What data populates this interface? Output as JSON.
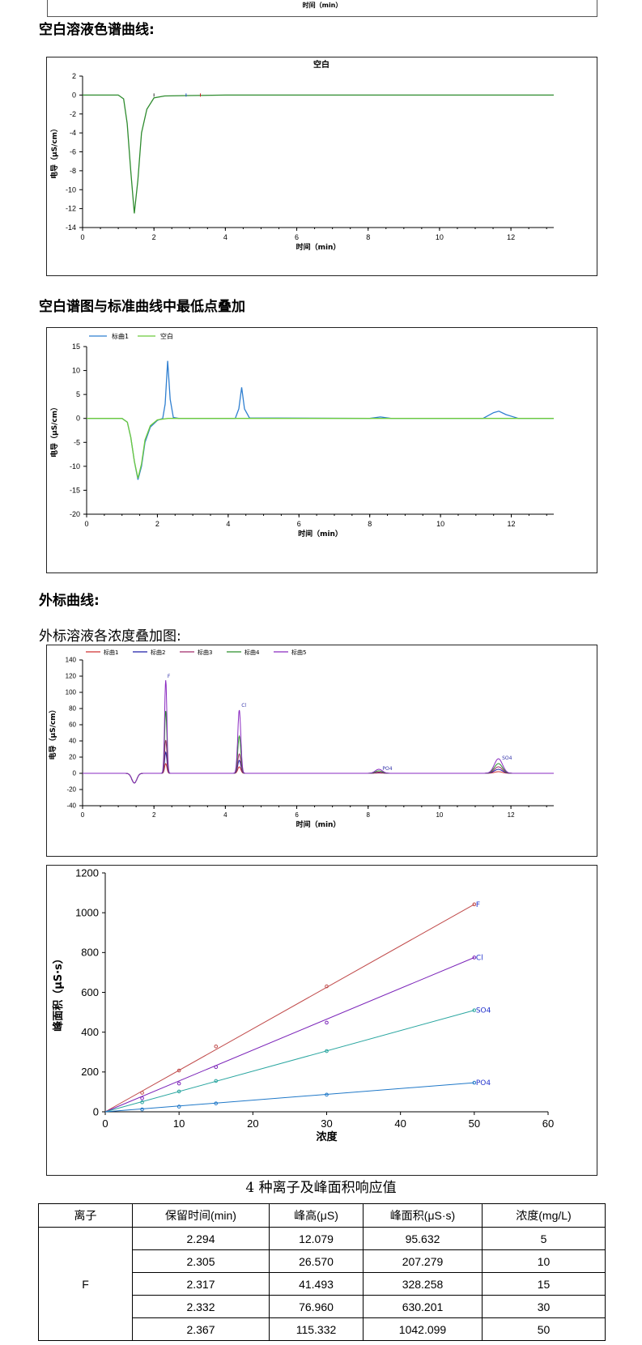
{
  "top_fragment": {
    "xlabel": "时间（min）"
  },
  "sections": {
    "blank_title": "空白溶液色谱曲线:",
    "overlay_title": "空白谱图与标准曲线中最低点叠加",
    "external_title": "外标曲线:",
    "overlay_all_title": "外标溶液各浓度叠加图:"
  },
  "chart_data": [
    {
      "type": "line",
      "title": "空白",
      "xlabel": "时间（min）",
      "ylabel": "电导（μS/cm）",
      "xlim": [
        0,
        13.2
      ],
      "ylim": [
        -14,
        2
      ],
      "xticks": [
        0,
        2,
        4,
        6,
        8,
        10,
        12
      ],
      "yticks": [
        2,
        0,
        -2,
        -4,
        -6,
        -8,
        -10,
        -12,
        -14
      ],
      "series": [
        {
          "color": "#2e8b2e",
          "points": [
            [
              0,
              0
            ],
            [
              1.0,
              0
            ],
            [
              1.15,
              -0.4
            ],
            [
              1.25,
              -3
            ],
            [
              1.35,
              -8
            ],
            [
              1.45,
              -12.5
            ],
            [
              1.55,
              -9
            ],
            [
              1.65,
              -4
            ],
            [
              1.8,
              -1.5
            ],
            [
              2.0,
              -0.3
            ],
            [
              2.3,
              -0.1
            ],
            [
              3,
              -0.05
            ],
            [
              4,
              0
            ],
            [
              13.2,
              0
            ]
          ]
        }
      ]
    },
    {
      "type": "line",
      "title": "",
      "xlabel": "时间（min）",
      "ylabel": "电导（μS/cm）",
      "xlim": [
        0,
        13.2
      ],
      "ylim": [
        -20,
        15
      ],
      "xticks": [
        0,
        2,
        4,
        6,
        8,
        10,
        12
      ],
      "yticks": [
        15,
        10,
        5,
        0,
        -5,
        -10,
        -15,
        -20
      ],
      "legend": "top-left",
      "series": [
        {
          "name": "标曲1",
          "color": "#2f7fd0",
          "points": [
            [
              0,
              0
            ],
            [
              1.0,
              0
            ],
            [
              1.15,
              -0.8
            ],
            [
              1.25,
              -4
            ],
            [
              1.35,
              -9
            ],
            [
              1.45,
              -12.8
            ],
            [
              1.55,
              -10
            ],
            [
              1.65,
              -5
            ],
            [
              1.8,
              -1.8
            ],
            [
              2.0,
              -0.4
            ],
            [
              2.15,
              0
            ],
            [
              2.22,
              3
            ],
            [
              2.29,
              12
            ],
            [
              2.36,
              4
            ],
            [
              2.45,
              0.2
            ],
            [
              2.6,
              0
            ],
            [
              4.2,
              0
            ],
            [
              4.3,
              2
            ],
            [
              4.38,
              6.5
            ],
            [
              4.46,
              2
            ],
            [
              4.6,
              0.1
            ],
            [
              8.0,
              0
            ],
            [
              8.3,
              0.3
            ],
            [
              8.6,
              0
            ],
            [
              11.2,
              0
            ],
            [
              11.5,
              1.2
            ],
            [
              11.65,
              1.5
            ],
            [
              11.85,
              0.8
            ],
            [
              12.2,
              0
            ],
            [
              13.2,
              0
            ]
          ]
        },
        {
          "name": "空白",
          "color": "#6ccb3c",
          "points": [
            [
              0,
              0
            ],
            [
              1.0,
              0
            ],
            [
              1.15,
              -0.8
            ],
            [
              1.25,
              -4
            ],
            [
              1.35,
              -9
            ],
            [
              1.45,
              -12.5
            ],
            [
              1.55,
              -9.5
            ],
            [
              1.65,
              -4.5
            ],
            [
              1.8,
              -1.5
            ],
            [
              2.0,
              -0.3
            ],
            [
              2.3,
              0
            ],
            [
              13.2,
              0
            ]
          ]
        }
      ]
    },
    {
      "type": "line",
      "title": "",
      "xlabel": "时间（min）",
      "ylabel": "电导（μS/cm）",
      "xlim": [
        0,
        13.2
      ],
      "ylim": [
        -40,
        140
      ],
      "xticks": [
        0,
        2,
        4,
        6,
        8,
        10,
        12
      ],
      "yticks": [
        140,
        120,
        100,
        80,
        60,
        40,
        20,
        0,
        -20,
        -40
      ],
      "legend": "top-left",
      "annotations": [
        {
          "text": "F",
          "x": 2.38,
          "y": 118
        },
        {
          "text": "Cl",
          "x": 4.45,
          "y": 82
        },
        {
          "text": "PO4",
          "x": 8.4,
          "y": 4
        },
        {
          "text": "SO4",
          "x": 11.75,
          "y": 17
        }
      ],
      "series": [
        {
          "name": "标曲1",
          "color": "#d03030",
          "peaks": [
            12,
            8,
            0.4,
            2
          ]
        },
        {
          "name": "标曲2",
          "color": "#1f1fa8",
          "peaks": [
            26,
            16,
            1,
            5
          ]
        },
        {
          "name": "标曲3",
          "color": "#a02a6a",
          "peaks": [
            41,
            24,
            1.5,
            8
          ]
        },
        {
          "name": "标曲4",
          "color": "#2a8f2a",
          "peaks": [
            77,
            46,
            3,
            12
          ]
        },
        {
          "name": "标曲5",
          "color": "#8a2ac0",
          "peaks": [
            115,
            78,
            5,
            18
          ]
        }
      ]
    },
    {
      "type": "scatter",
      "title": "",
      "xlabel": "浓度",
      "ylabel": "峰面积（μS·s）",
      "xlim": [
        0,
        60
      ],
      "ylim": [
        0,
        1200
      ],
      "xticks": [
        0,
        10,
        20,
        30,
        40,
        50,
        60
      ],
      "yticks": [
        0,
        200,
        400,
        600,
        800,
        1000,
        1200
      ],
      "series": [
        {
          "name": "F",
          "color": "#c04a4a",
          "x": [
            5,
            10,
            15,
            30,
            50
          ],
          "y": [
            95.632,
            207.279,
            328.258,
            630.201,
            1042.099
          ]
        },
        {
          "name": "Cl",
          "color": "#7a22b8",
          "x": [
            5,
            10,
            15,
            30,
            50
          ],
          "y": [
            68,
            142,
            225,
            448,
            775
          ]
        },
        {
          "name": "SO4",
          "color": "#2aa6a0",
          "x": [
            5,
            10,
            15,
            30,
            50
          ],
          "y": [
            48,
            102,
            155,
            305,
            510
          ]
        },
        {
          "name": "PO4",
          "color": "#1f78c8",
          "x": [
            5,
            10,
            15,
            30,
            50
          ],
          "y": [
            12,
            26,
            42,
            86,
            146
          ]
        }
      ]
    }
  ],
  "table": {
    "caption": "4 种离子及峰面积响应值",
    "headers": [
      "离子",
      "保留时间(min)",
      "峰高(μS)",
      "峰面积(μS·s)",
      "浓度(mg/L)"
    ],
    "group_label": "F",
    "rows": [
      [
        "2.294",
        "12.079",
        "95.632",
        "5"
      ],
      [
        "2.305",
        "26.570",
        "207.279",
        "10"
      ],
      [
        "2.317",
        "41.493",
        "328.258",
        "15"
      ],
      [
        "2.332",
        "76.960",
        "630.201",
        "30"
      ],
      [
        "2.367",
        "115.332",
        "1042.099",
        "50"
      ]
    ]
  }
}
